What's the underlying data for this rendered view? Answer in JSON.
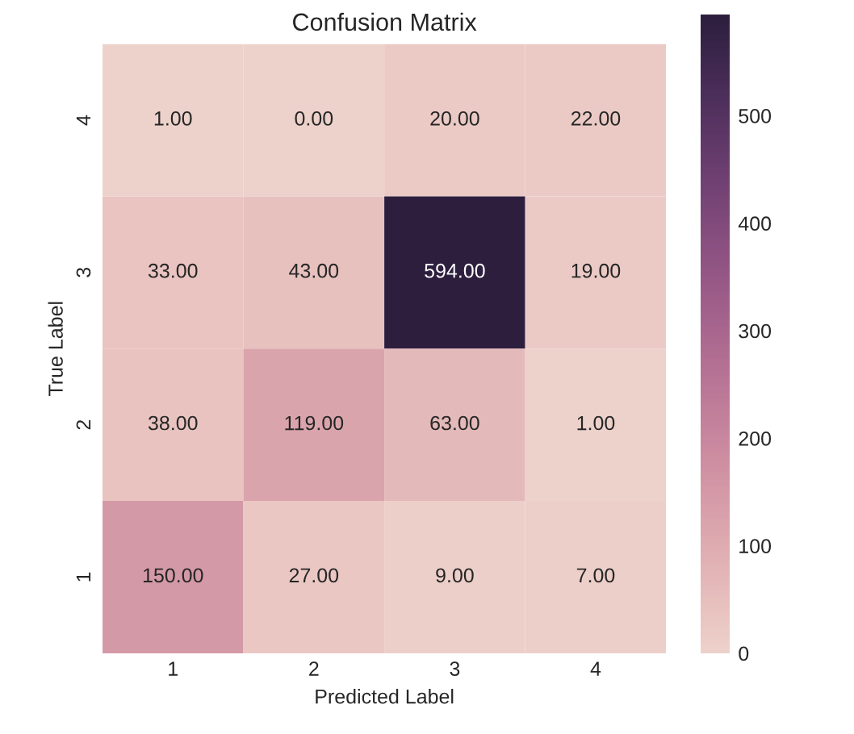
{
  "chart_data": {
    "type": "heatmap",
    "title": "Confusion Matrix",
    "xlabel": "Predicted Label",
    "ylabel": "True Label",
    "categories": [
      "1",
      "2",
      "3",
      "4"
    ],
    "y_categories": [
      "4",
      "3",
      "2",
      "1"
    ],
    "cells": [
      [
        1,
        0,
        20,
        22
      ],
      [
        33,
        43,
        594,
        19
      ],
      [
        38,
        119,
        63,
        1
      ],
      [
        150,
        27,
        9,
        7
      ]
    ],
    "cell_labels": [
      [
        "1.00",
        "0.00",
        "20.00",
        "22.00"
      ],
      [
        "33.00",
        "43.00",
        "594.00",
        "19.00"
      ],
      [
        "38.00",
        "119.00",
        "63.00",
        "1.00"
      ],
      [
        "150.00",
        "27.00",
        "9.00",
        "7.00"
      ]
    ],
    "clim": [
      0,
      594
    ],
    "cticks": [
      0,
      100,
      200,
      300,
      400,
      500
    ]
  }
}
